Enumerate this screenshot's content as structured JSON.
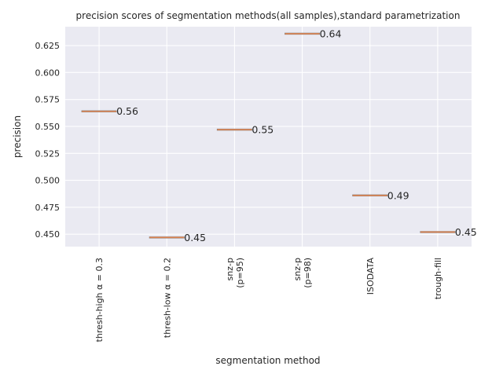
{
  "chart_data": {
    "type": "box",
    "title": "precision scores of segmentation methods(all samples),standard parametrization",
    "xlabel": "segmentation method",
    "ylabel": "precision",
    "ylim": [
      0.4385,
      0.6425
    ],
    "yticks": [
      0.45,
      0.475,
      0.5,
      0.525,
      0.55,
      0.575,
      0.6,
      0.625
    ],
    "ytick_labels": [
      "0.450",
      "0.475",
      "0.500",
      "0.525",
      "0.550",
      "0.575",
      "0.600",
      "0.625"
    ],
    "grid": true,
    "categories": [
      [
        "thresh-high α = 0.3"
      ],
      [
        "thresh-low α = 0.2"
      ],
      [
        "snz-p",
        "(p=95)"
      ],
      [
        "snz-p",
        "(p=98)"
      ],
      [
        "ISODATA"
      ],
      [
        "trough-fill"
      ]
    ],
    "values": [
      0.564,
      0.447,
      0.547,
      0.636,
      0.486,
      0.452
    ],
    "value_labels": [
      "0.56",
      "0.45",
      "0.55",
      "0.64",
      "0.49",
      "0.45"
    ],
    "colors": {
      "background": "#eaeaf2",
      "grid": "#ffffff",
      "box": "#7f7f7f",
      "median": "#dd8452",
      "text": "#262626"
    }
  }
}
